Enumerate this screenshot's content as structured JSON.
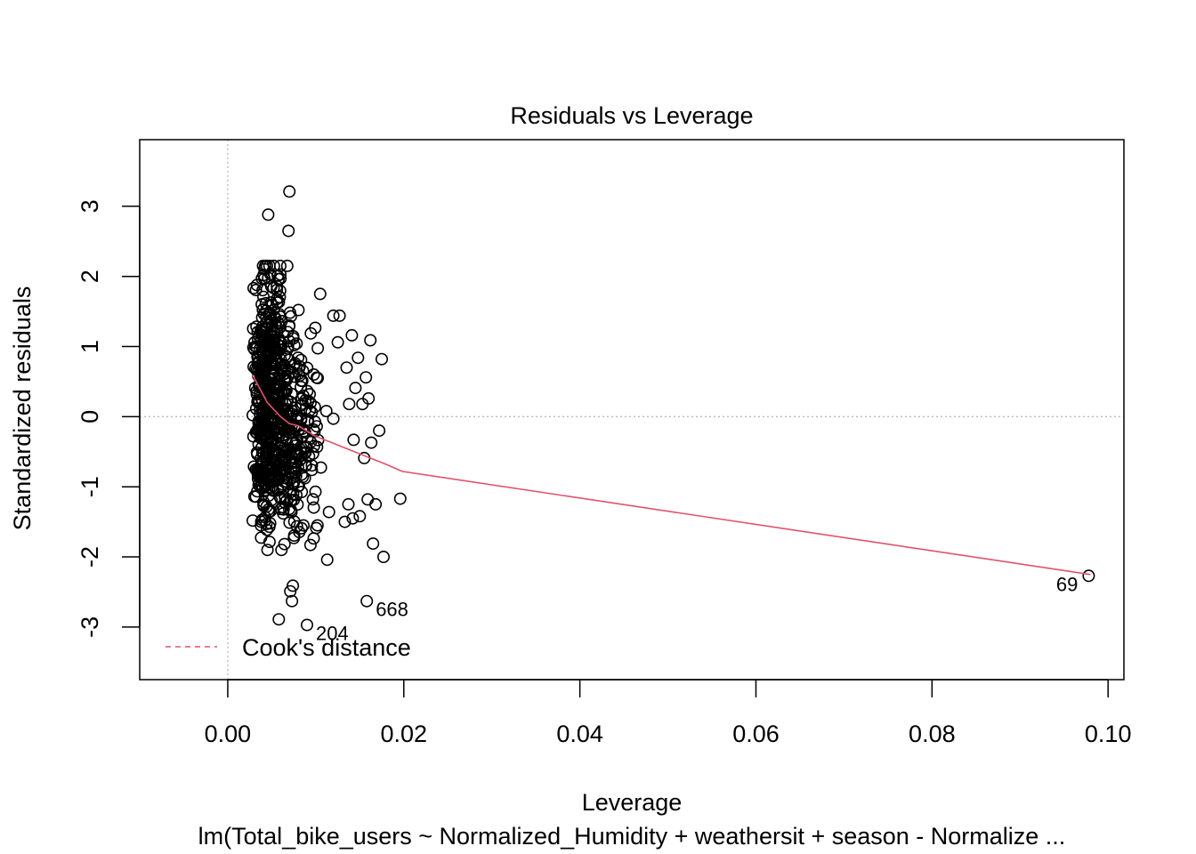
{
  "chart_data": {
    "type": "scatter",
    "title": "Residuals vs Leverage",
    "xlabel": "Leverage",
    "ylabel": "Standardized residuals",
    "subtitle": "lm(Total_bike_users ~ Normalized_Humidity + weathersit + season - Normalize ...",
    "xlim": [
      -0.01,
      0.1018
    ],
    "ylim": [
      -3.75,
      3.95
    ],
    "x_ticks": [
      0.0,
      0.02,
      0.04,
      0.06,
      0.08,
      0.1
    ],
    "x_tick_labels": [
      "0.00",
      "0.02",
      "0.04",
      "0.06",
      "0.08",
      "0.10"
    ],
    "y_ticks": [
      -3,
      -2,
      -1,
      0,
      1,
      2,
      3
    ],
    "y_tick_labels": [
      "-3",
      "-2",
      "-1",
      "0",
      "1",
      "2",
      "3"
    ],
    "reference_lines": {
      "x": 0,
      "y": 0,
      "style": "dotted",
      "color": "#bebebe"
    },
    "points_color": "#000000",
    "smooth_color": "#df536b",
    "cooks_legend": {
      "label": "Cook's distance",
      "placement": "bottom-left"
    },
    "smooth_line": {
      "x": [
        0.0028,
        0.0045,
        0.006,
        0.007,
        0.008,
        0.01,
        0.012,
        0.014,
        0.016,
        0.018,
        0.0198,
        0.098
      ],
      "y": [
        0.6,
        0.2,
        0.0,
        -0.1,
        -0.13,
        -0.28,
        -0.38,
        -0.48,
        -0.58,
        -0.68,
        -0.78,
        -2.25
      ]
    },
    "labeled_points": [
      {
        "label": "69",
        "x": 0.0978,
        "y": -2.27
      },
      {
        "label": "668",
        "x": 0.0158,
        "y": -2.63
      },
      {
        "label": "204",
        "x": 0.009,
        "y": -2.97
      }
    ],
    "outlier_points": {
      "x": [
        0.007,
        0.0046,
        0.0069,
        0.0058,
        0.0074,
        0.0071,
        0.0073,
        0.0113,
        0.0196,
        0.0177,
        0.0165,
        0.0168,
        0.0105,
        0.012,
        0.0127,
        0.0141,
        0.0148,
        0.0162,
        0.0157,
        0.0125,
        0.0135,
        0.0145,
        0.0153,
        0.016,
        0.0138,
        0.0155,
        0.0143,
        0.0175,
        0.0172,
        0.015,
        0.0163,
        0.0133,
        0.0142,
        0.0112,
        0.012,
        0.0159,
        0.0137,
        0.0102,
        0.0115,
        0.0094,
        0.0086
      ],
      "y": [
        3.21,
        2.88,
        2.65,
        -2.89,
        -2.41,
        -2.49,
        -2.63,
        -2.04,
        -1.17,
        -2.0,
        -1.81,
        -1.25,
        1.75,
        1.44,
        1.44,
        1.16,
        0.84,
        1.09,
        0.56,
        1.06,
        0.7,
        0.41,
        0.18,
        0.26,
        0.18,
        -0.59,
        -0.33,
        0.82,
        -0.2,
        -1.42,
        -0.37,
        -1.5,
        -1.45,
        0.08,
        -0.03,
        -1.18,
        -1.25,
        -1.55,
        -1.36,
        -1.83,
        -1.55
      ]
    },
    "cluster_description": "About 700 points concentrated at leverage 0.0025-0.0105 with residuals mostly between -1.9 and 2.2"
  }
}
